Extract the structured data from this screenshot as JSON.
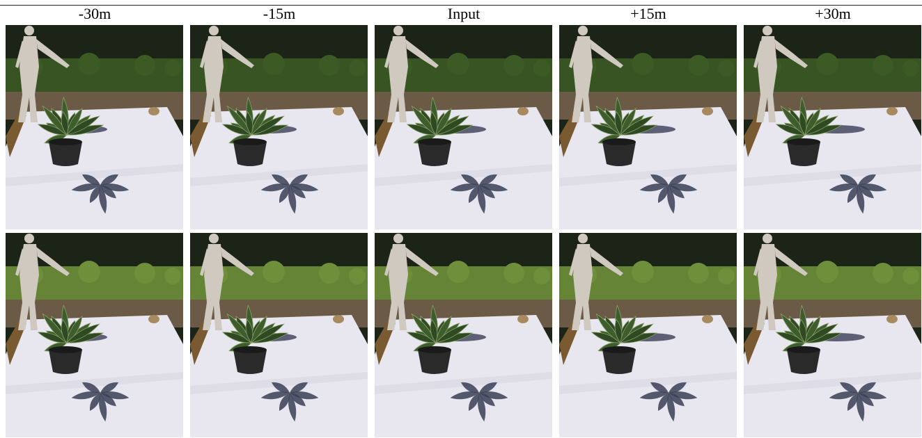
{
  "columns": [
    {
      "label": "-30m"
    },
    {
      "label": "-15m"
    },
    {
      "label": "Input"
    },
    {
      "label": "+15m"
    },
    {
      "label": "+30m"
    }
  ],
  "rows": 2,
  "scene": {
    "subjects": [
      "statue-figure",
      "potted-plant",
      "plant-shadow",
      "white-sheet",
      "hedge",
      "rock"
    ],
    "colors": {
      "sky_trees": "#1c2418",
      "hedge": "#3b5a24",
      "hedge_highlight": "#6f8f3a",
      "ground": "#6b5a45",
      "sheet": "#e8e6ee",
      "sheet_shade": "#d4d2dd",
      "shadow": "#3a3e55",
      "pot": "#2a2a2a",
      "leaf": "#2f4a22",
      "leaf_light": "#8aa06a",
      "statue": "#cfc9bf"
    }
  }
}
